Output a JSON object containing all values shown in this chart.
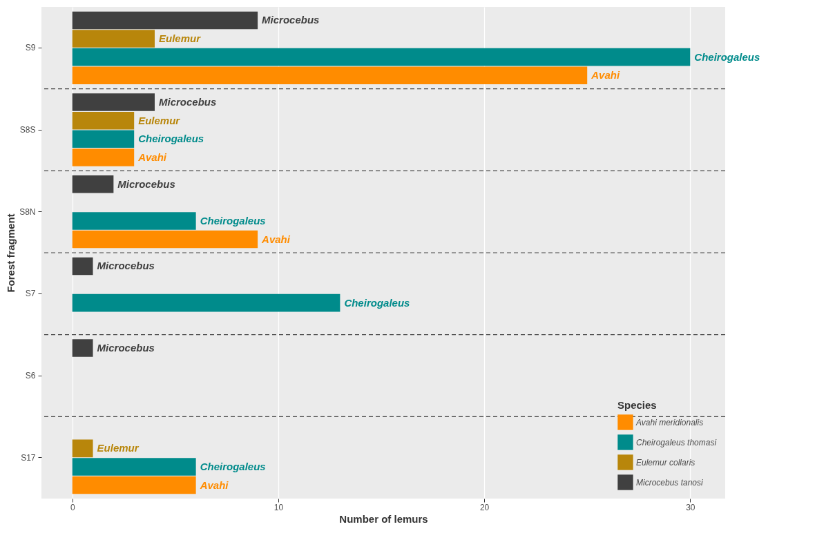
{
  "chart_data": {
    "type": "bar",
    "orientation": "horizontal",
    "xlabel": "Number of lemurs",
    "ylabel": "Forest fragment",
    "legend_title": "Species",
    "categories": [
      "S9",
      "S8S",
      "S8N",
      "S7",
      "S6",
      "S17"
    ],
    "series": [
      {
        "name": "Avahi meridionalis",
        "color": "#ff8c00",
        "values": [
          25,
          3,
          9,
          null,
          null,
          6
        ],
        "value_labels": [
          "Avahi",
          "Avahi",
          "Avahi",
          null,
          null,
          "Avahi"
        ]
      },
      {
        "name": "Cheirogaleus thomasi",
        "color": "#008b8b",
        "values": [
          30,
          3,
          6,
          13,
          null,
          6
        ],
        "value_labels": [
          "Cheirogaleus",
          "Cheirogaleus",
          "Cheirogaleus",
          "Cheirogaleus",
          null,
          "Cheirogaleus"
        ]
      },
      {
        "name": "Eulemur collaris",
        "color": "#b8860b",
        "values": [
          4,
          3,
          null,
          null,
          null,
          1
        ],
        "value_labels": [
          "Eulemur",
          "Eulemur",
          null,
          null,
          null,
          "Eulemur"
        ]
      },
      {
        "name": "Microcebus tanosi",
        "color": "#404040",
        "values": [
          9,
          4,
          2,
          1,
          1,
          null
        ],
        "value_labels": [
          "Microcebus",
          "Microcebus",
          "Microcebus",
          "Microcebus",
          "Microcebus",
          null
        ]
      }
    ],
    "xlim": [
      -1.5,
      31.7
    ],
    "xticks": [
      0,
      10,
      20,
      30
    ],
    "grid": "x",
    "legend": "bottom right"
  }
}
